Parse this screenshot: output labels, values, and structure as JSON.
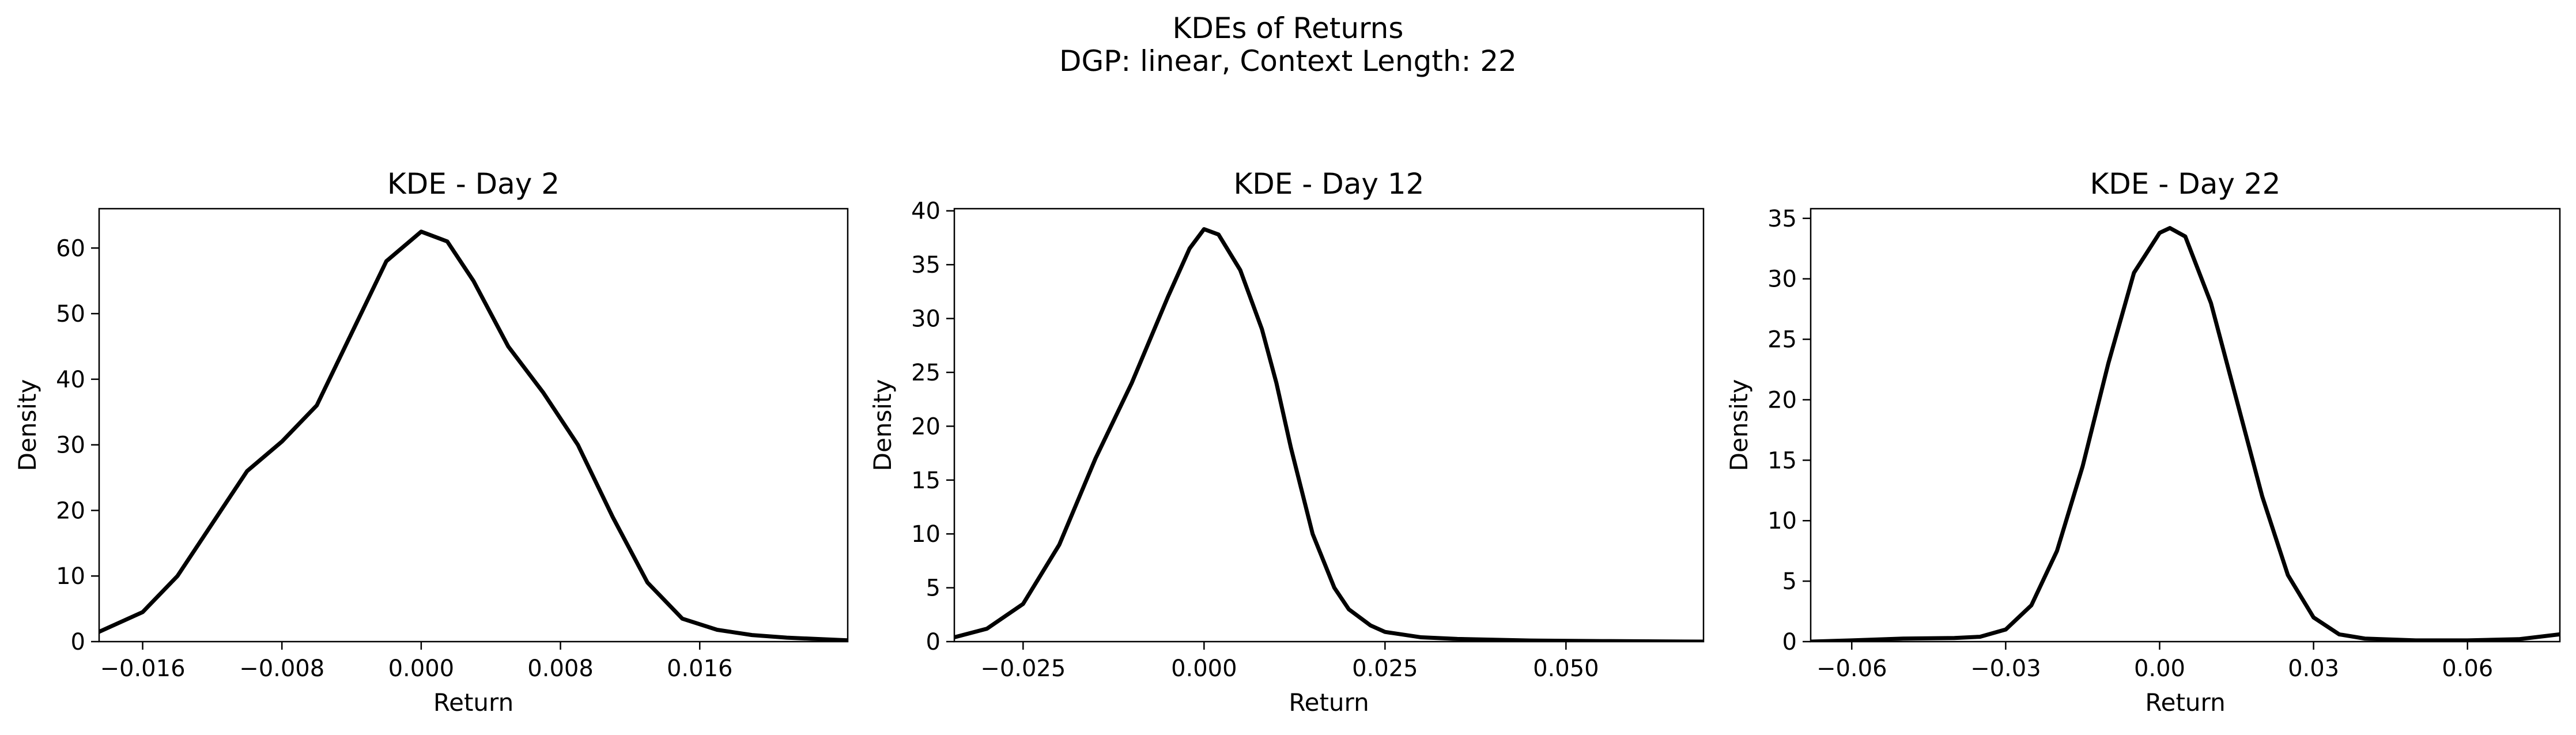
{
  "figure": {
    "title_line1": "KDEs of Returns",
    "title_line2": "DGP: linear, Context Length: 22"
  },
  "chart_data": [
    {
      "type": "line",
      "title": "KDE - Day 2",
      "xlabel": "Return",
      "ylabel": "Density",
      "xlim": [
        -0.0185,
        0.0245
      ],
      "ylim": [
        0,
        66
      ],
      "xticks": [
        -0.016,
        -0.008,
        0.0,
        0.008,
        0.016
      ],
      "xtick_labels": [
        "−0.016",
        "−0.008",
        "0.000",
        "0.008",
        "0.016"
      ],
      "yticks": [
        0,
        10,
        20,
        30,
        40,
        50,
        60
      ],
      "ytick_labels": [
        "0",
        "10",
        "20",
        "30",
        "40",
        "50",
        "60"
      ],
      "grid": false,
      "series": [
        {
          "color": "#000000",
          "x": [
            -0.0185,
            -0.016,
            -0.014,
            -0.012,
            -0.01,
            -0.008,
            -0.006,
            -0.004,
            -0.002,
            0.0,
            0.0015,
            0.003,
            0.005,
            0.007,
            0.009,
            0.011,
            0.013,
            0.015,
            0.017,
            0.019,
            0.021,
            0.0245
          ],
          "y": [
            1.5,
            4.5,
            10,
            18,
            26,
            30.5,
            36,
            47,
            58,
            62.5,
            61,
            55,
            45,
            38,
            30,
            19,
            9,
            3.5,
            1.8,
            1.0,
            0.6,
            0.2
          ]
        }
      ]
    },
    {
      "type": "line",
      "title": "KDE - Day 12",
      "xlabel": "Return",
      "ylabel": "Density",
      "xlim": [
        -0.0345,
        0.069
      ],
      "ylim": [
        0,
        40.2
      ],
      "xticks": [
        -0.025,
        0.0,
        0.025,
        0.05
      ],
      "xtick_labels": [
        "−0.025",
        "0.000",
        "0.025",
        "0.050"
      ],
      "yticks": [
        0,
        5,
        10,
        15,
        20,
        25,
        30,
        35,
        40
      ],
      "ytick_labels": [
        "0",
        "5",
        "10",
        "15",
        "20",
        "25",
        "30",
        "35",
        "40"
      ],
      "grid": false,
      "series": [
        {
          "color": "#000000",
          "x": [
            -0.0345,
            -0.03,
            -0.025,
            -0.02,
            -0.015,
            -0.01,
            -0.005,
            -0.002,
            0.0,
            0.002,
            0.005,
            0.008,
            0.01,
            0.012,
            0.015,
            0.018,
            0.02,
            0.023,
            0.025,
            0.03,
            0.035,
            0.045,
            0.055,
            0.069
          ],
          "y": [
            0.4,
            1.2,
            3.5,
            9,
            17,
            24,
            32,
            36.5,
            38.3,
            37.8,
            34.5,
            29,
            24,
            18,
            10,
            5,
            3,
            1.5,
            0.9,
            0.4,
            0.25,
            0.1,
            0.05,
            0.0
          ]
        }
      ]
    },
    {
      "type": "line",
      "title": "KDE - Day 22",
      "xlabel": "Return",
      "ylabel": "Density",
      "xlim": [
        -0.068,
        0.078
      ],
      "ylim": [
        0,
        35.8
      ],
      "xticks": [
        -0.06,
        -0.03,
        0.0,
        0.03,
        0.06
      ],
      "xtick_labels": [
        "−0.06",
        "−0.03",
        "0.00",
        "0.03",
        "0.06"
      ],
      "yticks": [
        0,
        5,
        10,
        15,
        20,
        25,
        30,
        35
      ],
      "ytick_labels": [
        "0",
        "5",
        "10",
        "15",
        "20",
        "25",
        "30",
        "35"
      ],
      "grid": false,
      "series": [
        {
          "color": "#000000",
          "x": [
            -0.068,
            -0.06,
            -0.05,
            -0.04,
            -0.035,
            -0.03,
            -0.025,
            -0.02,
            -0.015,
            -0.01,
            -0.005,
            0.0,
            0.002,
            0.005,
            0.01,
            0.015,
            0.02,
            0.025,
            0.03,
            0.035,
            0.04,
            0.05,
            0.06,
            0.07,
            0.078
          ],
          "y": [
            0.0,
            0.1,
            0.25,
            0.3,
            0.4,
            1.0,
            3.0,
            7.5,
            14.5,
            23,
            30.5,
            33.8,
            34.2,
            33.5,
            28,
            20,
            12,
            5.5,
            2.0,
            0.6,
            0.25,
            0.1,
            0.1,
            0.2,
            0.6
          ]
        }
      ]
    }
  ]
}
